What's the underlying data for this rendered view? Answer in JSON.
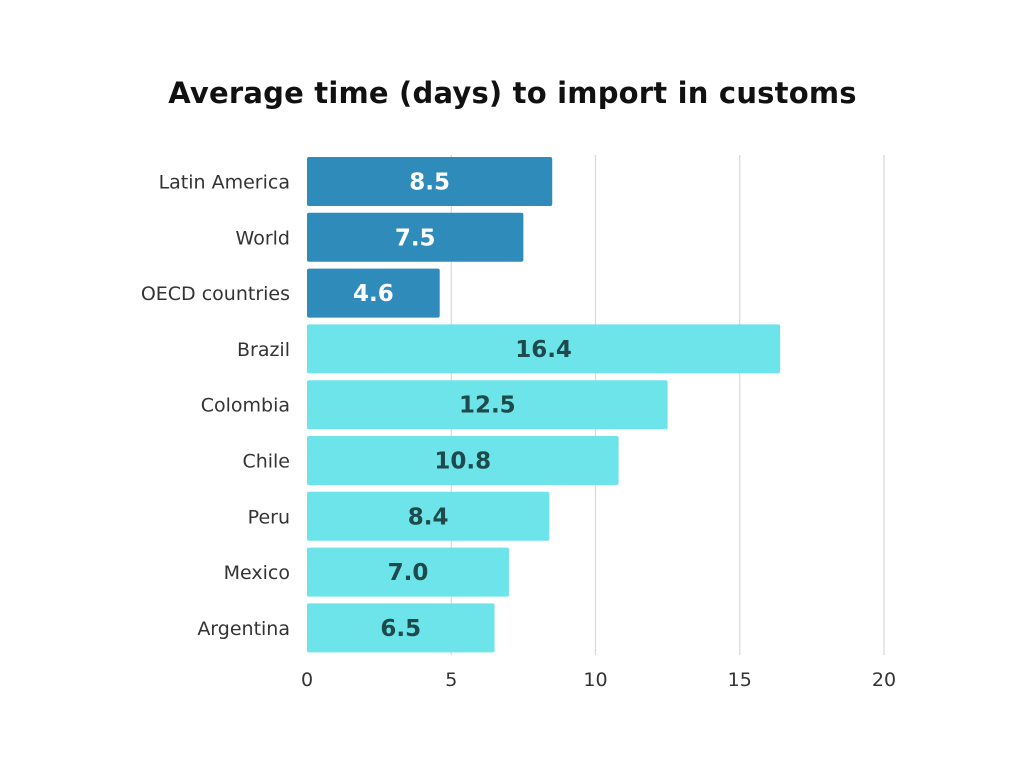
{
  "chart_data": {
    "type": "bar",
    "orientation": "horizontal",
    "title": "Average time (days) to import in customs",
    "xlabel": "",
    "ylabel": "",
    "xlim": [
      0,
      20
    ],
    "x_ticks": [
      0,
      5,
      10,
      15,
      20
    ],
    "grid": "vertical",
    "categories": [
      "Latin America",
      "World",
      "OECD countries",
      "Brazil",
      "Colombia",
      "Chile",
      "Peru",
      "Mexico",
      "Argentina"
    ],
    "values": [
      8.5,
      7.5,
      4.6,
      16.4,
      12.5,
      10.8,
      8.4,
      7.0,
      6.5
    ],
    "value_labels": [
      "8.5",
      "7.5",
      "4.6",
      "16.4",
      "12.5",
      "10.8",
      "8.4",
      "7.0",
      "6.5"
    ],
    "groups": [
      "aggregate",
      "aggregate",
      "aggregate",
      "country",
      "country",
      "country",
      "country",
      "country",
      "country"
    ],
    "colors": {
      "aggregate": "#2E8BBA",
      "country": "#6CE4EA",
      "aggregate_label": "#FFFFFF",
      "country_label": "#1E4A4C",
      "grid": "#D9D9D9",
      "title": "#111111",
      "axis_text": "#333333"
    }
  }
}
